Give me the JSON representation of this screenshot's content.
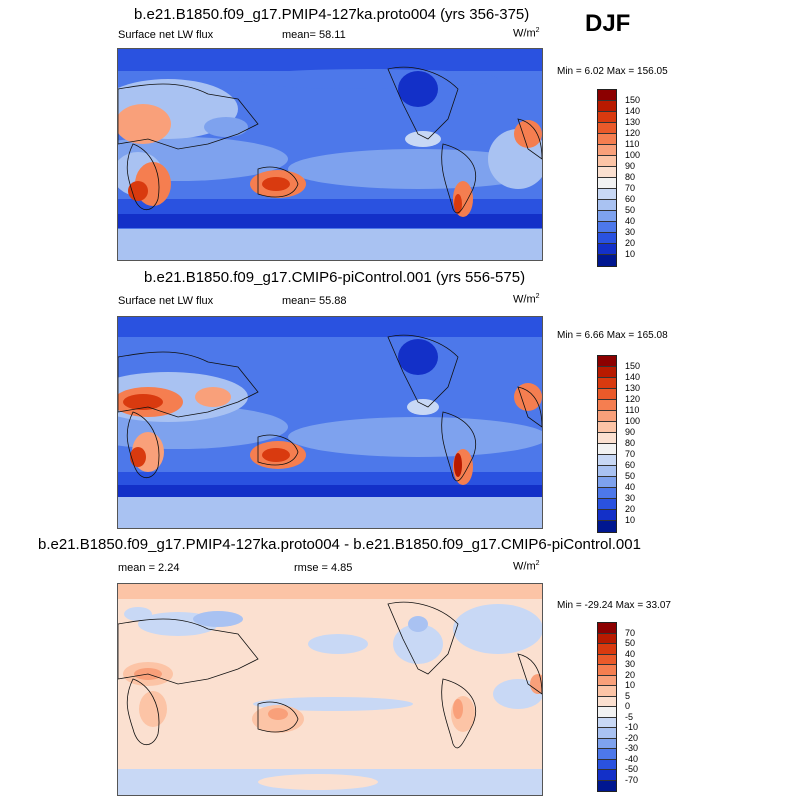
{
  "season": "DJF",
  "panels": [
    {
      "title": "b.e21.B1850.f09_g17.PMIP4-127ka.proto004 (yrs 356-375)",
      "variable": "Surface net LW flux",
      "mean_label": "mean=  58.11",
      "units": "W/m",
      "units_sup": "2",
      "minmax": "Min =   6.02 Max = 156.05"
    },
    {
      "title": "b.e21.B1850.f09_g17.CMIP6-piControl.001 (yrs 556-575)",
      "variable": "Surface net LW flux",
      "mean_label": "mean=  55.88",
      "units": "W/m",
      "units_sup": "2",
      "minmax": "Min =   6.66 Max = 165.08"
    },
    {
      "title": "b.e21.B1850.f09_g17.PMIP4-127ka.proto004 - b.e21.B1850.f09_g17.CMIP6-piControl.001",
      "mean_label": "mean =   2.24",
      "rmse_label": "rmse =   4.85",
      "units": "W/m",
      "units_sup": "2",
      "minmax": "Min = -29.24 Max =  33.07"
    }
  ],
  "colorbars": {
    "absolute": {
      "levels": [
        "150",
        "140",
        "130",
        "120",
        "110",
        "100",
        "90",
        "80",
        "70",
        "60",
        "50",
        "40",
        "30",
        "20",
        "10"
      ],
      "colors": [
        "#8c0000",
        "#b81a00",
        "#d93a0f",
        "#ea5a2a",
        "#f57e50",
        "#f9a07a",
        "#fcc4a6",
        "#fbe0d0",
        "#f2f2f2",
        "#c8d8f5",
        "#a9c2f2",
        "#7ea2ee",
        "#4d78ea",
        "#2a52e0",
        "#1330c8",
        "#001790"
      ]
    },
    "difference": {
      "levels": [
        "70",
        "50",
        "40",
        "30",
        "20",
        "10",
        "5",
        "0",
        "-5",
        "-10",
        "-20",
        "-30",
        "-40",
        "-50",
        "-70"
      ],
      "colors": [
        "#8c0000",
        "#b81a00",
        "#d93a0f",
        "#ea5a2a",
        "#f57e50",
        "#f9a07a",
        "#fcc4a6",
        "#fbe0d0",
        "#f2f2f2",
        "#c8d8f5",
        "#a9c2f2",
        "#7ea2ee",
        "#4d78ea",
        "#2a52e0",
        "#1330c8",
        "#001790"
      ]
    }
  }
}
